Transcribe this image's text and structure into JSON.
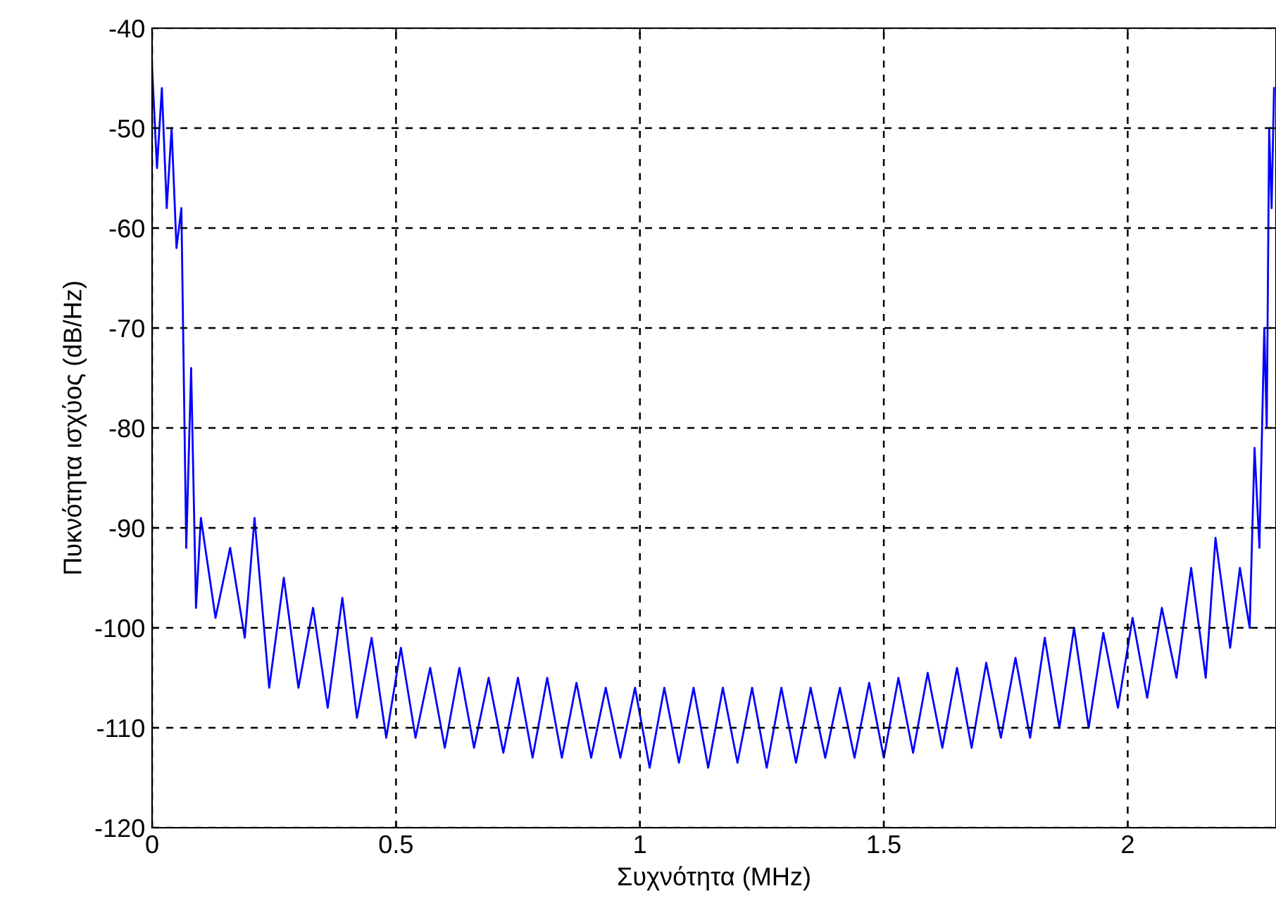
{
  "chart_data": {
    "type": "line",
    "xlabel": "Συχνότητα (MHz)",
    "ylabel": "Πυκνότητα ισχύος (dB/Hz)",
    "x": [
      0,
      0.01,
      0.02,
      0.03,
      0.04,
      0.05,
      0.06,
      0.07,
      0.08,
      0.09,
      0.1,
      0.13,
      0.16,
      0.19,
      0.21,
      0.24,
      0.27,
      0.3,
      0.33,
      0.36,
      0.39,
      0.42,
      0.45,
      0.48,
      0.51,
      0.54,
      0.57,
      0.6,
      0.63,
      0.66,
      0.69,
      0.72,
      0.75,
      0.78,
      0.81,
      0.84,
      0.87,
      0.9,
      0.93,
      0.96,
      0.99,
      1.02,
      1.05,
      1.08,
      1.11,
      1.14,
      1.17,
      1.2,
      1.23,
      1.26,
      1.29,
      1.32,
      1.35,
      1.38,
      1.41,
      1.44,
      1.47,
      1.5,
      1.53,
      1.56,
      1.59,
      1.62,
      1.65,
      1.68,
      1.71,
      1.74,
      1.77,
      1.8,
      1.83,
      1.86,
      1.89,
      1.92,
      1.95,
      1.98,
      2.01,
      2.04,
      2.07,
      2.1,
      2.13,
      2.16,
      2.18,
      2.21,
      2.23,
      2.25,
      2.26,
      2.27,
      2.28,
      2.285,
      2.29,
      2.295,
      2.3
    ],
    "series": [
      {
        "color": "#0000ff",
        "values": [
          -44,
          -54,
          -46,
          -58,
          -50,
          -62,
          -58,
          -92,
          -74,
          -98,
          -89,
          -99,
          -92,
          -101,
          -89,
          -106,
          -95,
          -106,
          -98,
          -108,
          -97,
          -109,
          -101,
          -111,
          -102,
          -111,
          -104,
          -112,
          -104,
          -112,
          -105,
          -112.5,
          -105,
          -113,
          -105,
          -113,
          -105.5,
          -113,
          -106,
          -113,
          -106,
          -114,
          -106,
          -113.5,
          -106,
          -114,
          -106,
          -113.5,
          -106,
          -114,
          -106,
          -113.5,
          -106,
          -113,
          -106,
          -113,
          -105.5,
          -113,
          -105,
          -112.5,
          -104.5,
          -112,
          -104,
          -112,
          -103.5,
          -111,
          -103,
          -111,
          -101,
          -110,
          -100,
          -110,
          -100.5,
          -108,
          -99,
          -107,
          -98,
          -105,
          -94,
          -105,
          -91,
          -102,
          -94,
          -100,
          -82,
          -92,
          -70,
          -80,
          -50,
          -58,
          -46
        ]
      }
    ],
    "xlim": [
      0,
      2.304
    ],
    "ylim": [
      -120,
      -40
    ],
    "xticks": [
      0,
      0.5,
      1,
      1.5,
      2
    ],
    "yticks": [
      -120,
      -110,
      -100,
      -90,
      -80,
      -70,
      -60,
      -50,
      -40
    ],
    "grid": true,
    "line_style": "solid",
    "marker": "none",
    "legend": false
  }
}
